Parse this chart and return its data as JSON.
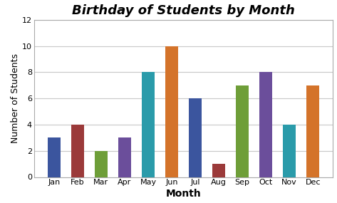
{
  "title": "Birthday of Students by Month",
  "xlabel": "Month",
  "ylabel": "Number of Students",
  "categories": [
    "Jan",
    "Feb",
    "Mar",
    "Apr",
    "May",
    "Jun",
    "Jul",
    "Aug",
    "Sep",
    "Oct",
    "Nov",
    "Dec"
  ],
  "values": [
    3,
    4,
    2,
    3,
    8,
    10,
    6,
    1,
    7,
    8,
    4,
    7
  ],
  "bar_colors": [
    "#3B559E",
    "#9B3A3A",
    "#6E9E38",
    "#6B4E9B",
    "#2A9BAA",
    "#D4732A",
    "#3B559E",
    "#9B3A3A",
    "#6E9E38",
    "#6B4E9B",
    "#2A9BAA",
    "#D4732A"
  ],
  "ylim": [
    0,
    12
  ],
  "yticks": [
    0,
    2,
    4,
    6,
    8,
    10,
    12
  ],
  "background_color": "#ffffff",
  "plot_bg_color": "#ffffff",
  "title_fontsize": 13,
  "axis_label_fontsize": 10,
  "tick_fontsize": 8,
  "bar_width": 0.55,
  "grid_color": "#c8c8c8",
  "spine_color": "#aaaaaa"
}
